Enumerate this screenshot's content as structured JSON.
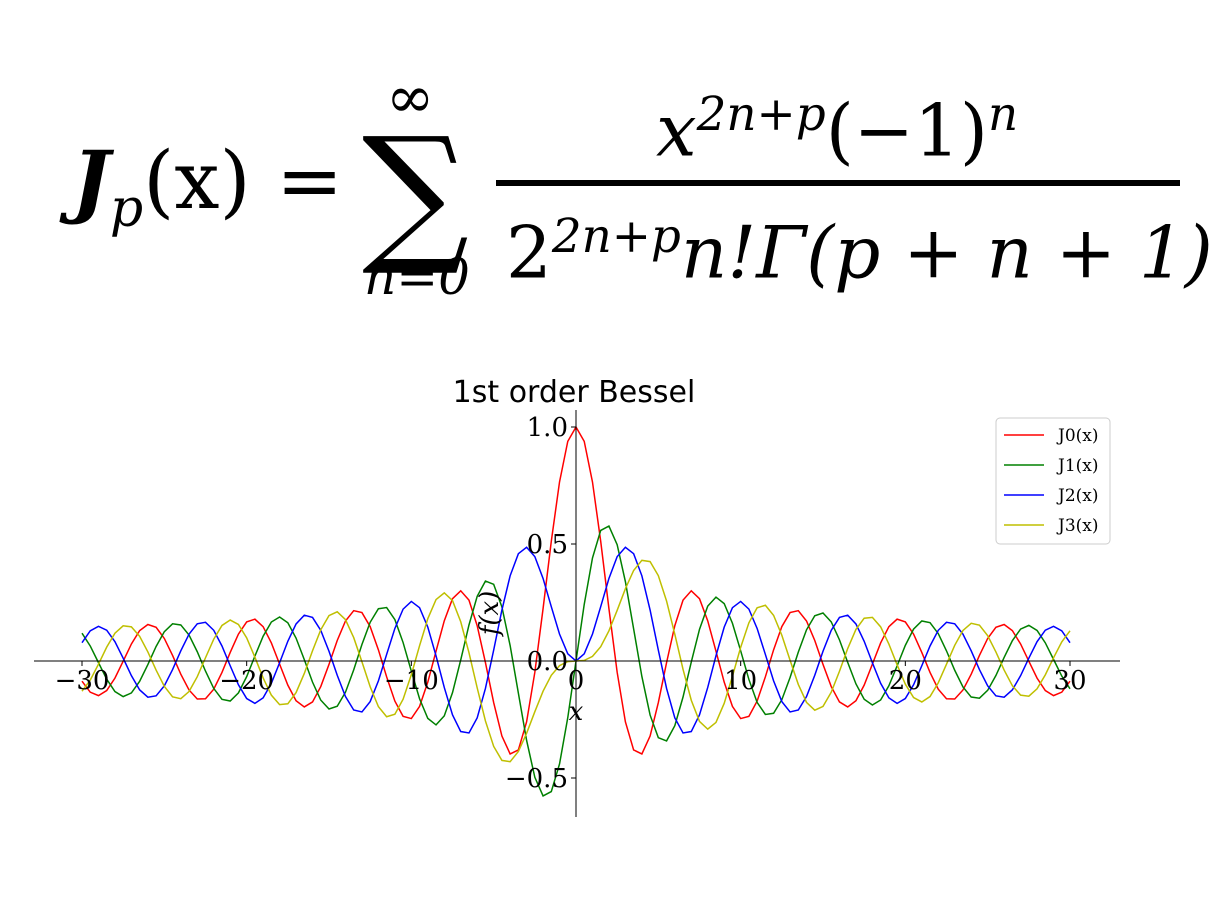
{
  "formula": {
    "lhs_symbol": "J",
    "lhs_subscript": "p",
    "lhs_arg": "(x) =",
    "sum_symbol": "∑",
    "sum_upper": "∞",
    "sum_lower": "n=0",
    "numerator_base": "x",
    "numerator_exp": "2n+p",
    "numerator_rest": "(−1)",
    "numerator_rest_exp": "n",
    "denominator_base": "2",
    "denominator_exp": "2n+p",
    "denominator_rest": "n!Γ(p + n + 1)"
  },
  "chart_data": {
    "type": "line",
    "title": "1st order Bessel",
    "xlabel": "x",
    "ylabel": "f(x)",
    "xlim": [
      -30,
      30
    ],
    "ylim": [
      -0.65,
      1.05
    ],
    "xticks": [
      -30,
      -20,
      -10,
      0,
      10,
      20,
      30
    ],
    "xtick_labels": [
      "−30",
      "−20",
      "−10",
      "0",
      "10",
      "20",
      "30"
    ],
    "yticks": [
      -0.5,
      0.0,
      0.5,
      1.0
    ],
    "ytick_labels": [
      "−0.5",
      "0.0",
      "0.5",
      "1.0"
    ],
    "spines": "centered at origin",
    "legend_position": "top-right",
    "x_range": {
      "start": -30,
      "end": 30,
      "samples": 121
    },
    "series": [
      {
        "name": "J0(x)",
        "order": 0,
        "color": "#ff0000"
      },
      {
        "name": "J1(x)",
        "order": 1,
        "color": "#008000"
      },
      {
        "name": "J2(x)",
        "order": 2,
        "color": "#0000ff"
      },
      {
        "name": "J3(x)",
        "order": 3,
        "color": "#bfbf00"
      }
    ]
  }
}
